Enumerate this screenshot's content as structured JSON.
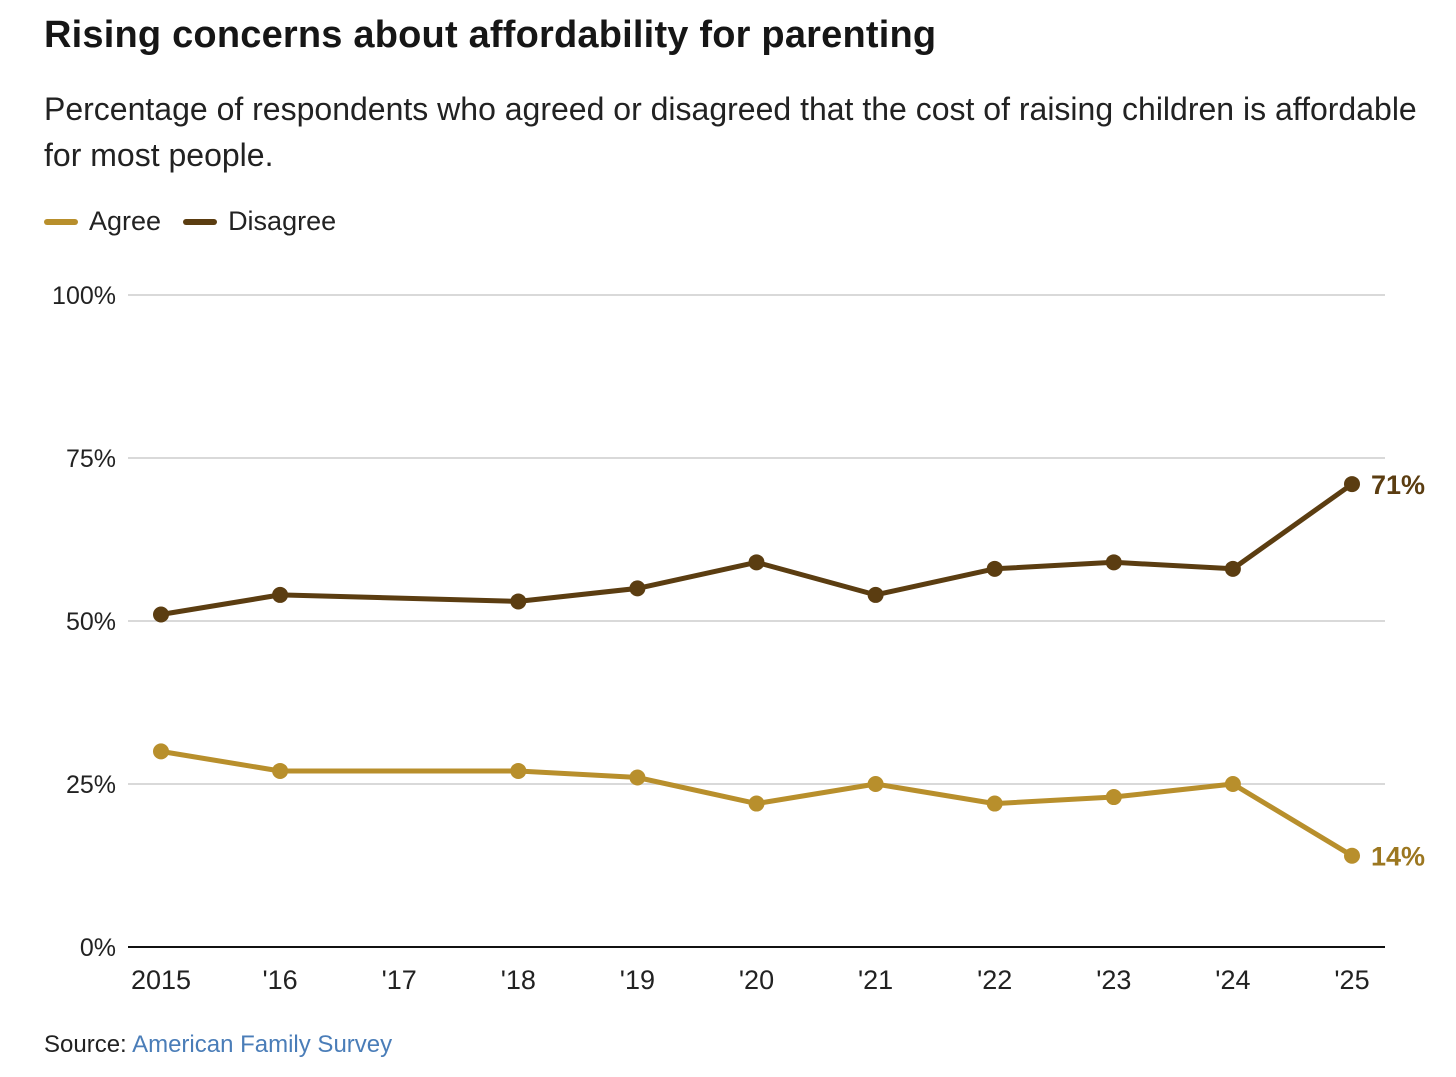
{
  "header": {
    "title": "Rising concerns about affordability for parenting",
    "subtitle": "Percentage of respondents who agreed or disagreed that the cost of raising children is affordable for most people."
  },
  "legend": {
    "agree_label": "Agree",
    "disagree_label": "Disagree"
  },
  "colors": {
    "agree": "#b88f2c",
    "disagree": "#5b3d11",
    "agree_label": "#9c7720",
    "disagree_label": "#5b3d11",
    "grid": "#d9d9d9",
    "axis": "#111111",
    "source_link": "#4a7db8"
  },
  "chart_data": {
    "type": "line",
    "title": "Rising concerns about affordability for parenting",
    "xlabel": "",
    "ylabel": "",
    "x": [
      2015,
      2016,
      2017,
      2018,
      2019,
      2020,
      2021,
      2022,
      2023,
      2024,
      2025
    ],
    "x_tick_labels": [
      "2015",
      "'16",
      "'17",
      "'18",
      "'19",
      "'20",
      "'21",
      "'22",
      "'23",
      "'24",
      "'25"
    ],
    "ylim": [
      0,
      100
    ],
    "y_ticks": [
      0,
      25,
      50,
      75,
      100
    ],
    "y_tick_labels": [
      "0%",
      "25%",
      "50%",
      "75%",
      "100%"
    ],
    "grid": true,
    "legend_position": "top-left",
    "series": [
      {
        "name": "Agree",
        "points": [
          [
            2015,
            30
          ],
          [
            2016,
            27
          ],
          [
            2018,
            27
          ],
          [
            2019,
            26
          ],
          [
            2020,
            22
          ],
          [
            2021,
            25
          ],
          [
            2022,
            22
          ],
          [
            2023,
            23
          ],
          [
            2024,
            25
          ],
          [
            2025,
            14
          ]
        ],
        "end_label": "14%"
      },
      {
        "name": "Disagree",
        "points": [
          [
            2015,
            51
          ],
          [
            2016,
            54
          ],
          [
            2018,
            53
          ],
          [
            2019,
            55
          ],
          [
            2020,
            59
          ],
          [
            2021,
            54
          ],
          [
            2022,
            58
          ],
          [
            2023,
            59
          ],
          [
            2024,
            58
          ],
          [
            2025,
            71
          ]
        ],
        "end_label": "71%"
      }
    ]
  },
  "footer": {
    "source_prefix": "Source:",
    "source_link": "American Family Survey"
  }
}
